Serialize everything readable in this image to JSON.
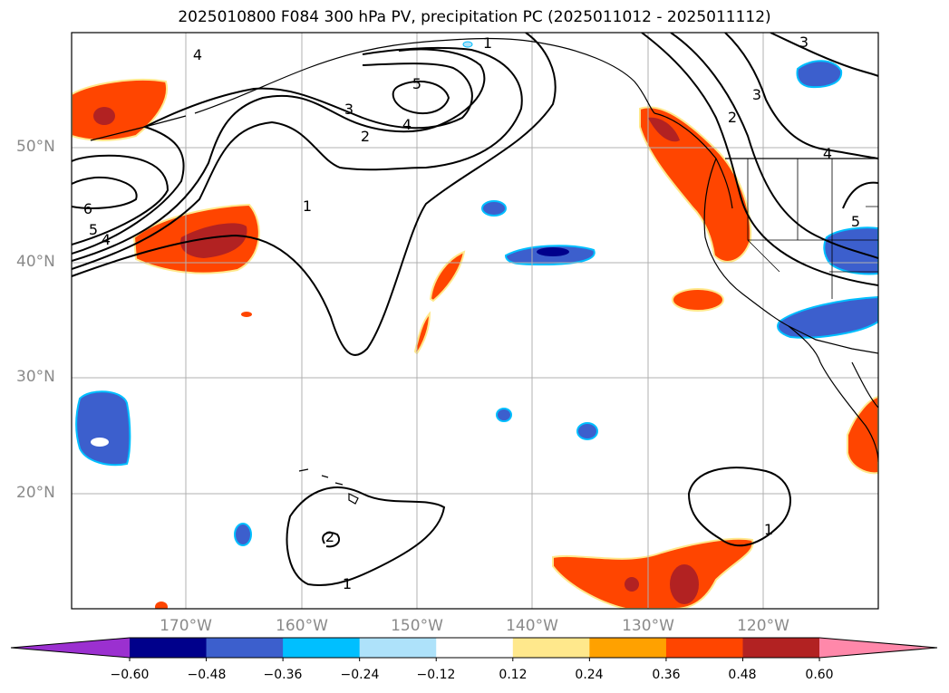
{
  "title": "2025010800 F084 300 hPa PV, precipitation PC (2025011012 - 2025011112)",
  "lat_labels": [
    "50°N",
    "40°N",
    "30°N",
    "20°N"
  ],
  "lon_labels": [
    "170°W",
    "160°W",
    "150°W",
    "140°W",
    "130°W",
    "120°W"
  ],
  "colorbar": {
    "ticks": [
      "−0.60",
      "−0.48",
      "−0.36",
      "−0.24",
      "−0.12",
      "0.12",
      "0.24",
      "0.36",
      "0.48",
      "0.60"
    ],
    "colors": [
      "#9b30d0",
      "#00008b",
      "#3c5fcd",
      "#00bfff",
      "#aee2fa",
      "#ffffff",
      "#ffe88c",
      "#ffa100",
      "#ff4500",
      "#b22222",
      "#ff88aa"
    ]
  },
  "contour_labels": [
    "1",
    "2",
    "3",
    "4",
    "5",
    "6"
  ],
  "colors": {
    "contour": "#000000",
    "grid": "#b0b0b0",
    "coast": "#000000"
  }
}
